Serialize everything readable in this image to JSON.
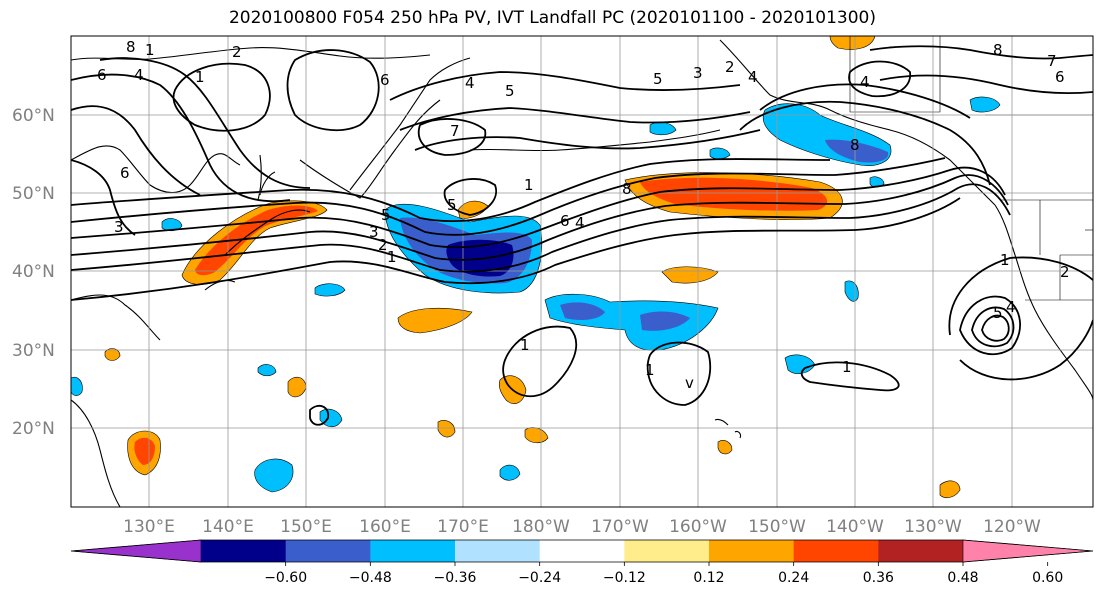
{
  "title": "2020100800 F054 250 hPa PV, IVT Landfall PC (2020101100 - 2020101300)",
  "lon_labels": [
    "130°E",
    "140°E",
    "150°E",
    "160°E",
    "170°E",
    "180°W",
    "170°W",
    "160°W",
    "150°W",
    "140°W",
    "130°W",
    "120°W"
  ],
  "lat_labels": [
    "60°N",
    "50°N",
    "40°N",
    "30°N",
    "20°N"
  ],
  "colorbar": {
    "colors": [
      "#9932cc",
      "#00008b",
      "#3a5fcd",
      "#00bfff",
      "#b0e2ff",
      "#ffffff",
      "#ffec8b",
      "#ffa500",
      "#ff4500",
      "#b22222",
      "#ff82ab"
    ],
    "tick_labels": [
      "−0.60",
      "−0.48",
      "−0.36",
      "−0.24",
      "−0.12",
      "0.12",
      "0.24",
      "0.36",
      "0.48",
      "0.60"
    ]
  },
  "contour_labels": {
    "l8a": "8",
    "l1a": "1",
    "l2a": "2",
    "l6a": "6",
    "l4a": "4",
    "l1b": "1",
    "l6b": "6",
    "l4b": "4",
    "l5a": "5",
    "l7a": "7",
    "l6c": "6",
    "l3a": "3",
    "l5b": "5",
    "l1c": "1",
    "l5c": "5",
    "l3b": "3",
    "l2b": "2",
    "l1d": "1",
    "l6d": "6",
    "l4c": "4",
    "l8b": "8",
    "l5d": "5",
    "l3c": "3",
    "l2c": "2",
    "l4d": "4",
    "l8c": "8",
    "l4e": "4",
    "l8d": "8",
    "l7b": "7",
    "l6e": "6",
    "l1e": "1",
    "l2d": "2",
    "l5e": "5",
    "l4f": "4",
    "l1f": "1",
    "l1g": "1",
    "l1h": "1",
    "lv": "v"
  }
}
